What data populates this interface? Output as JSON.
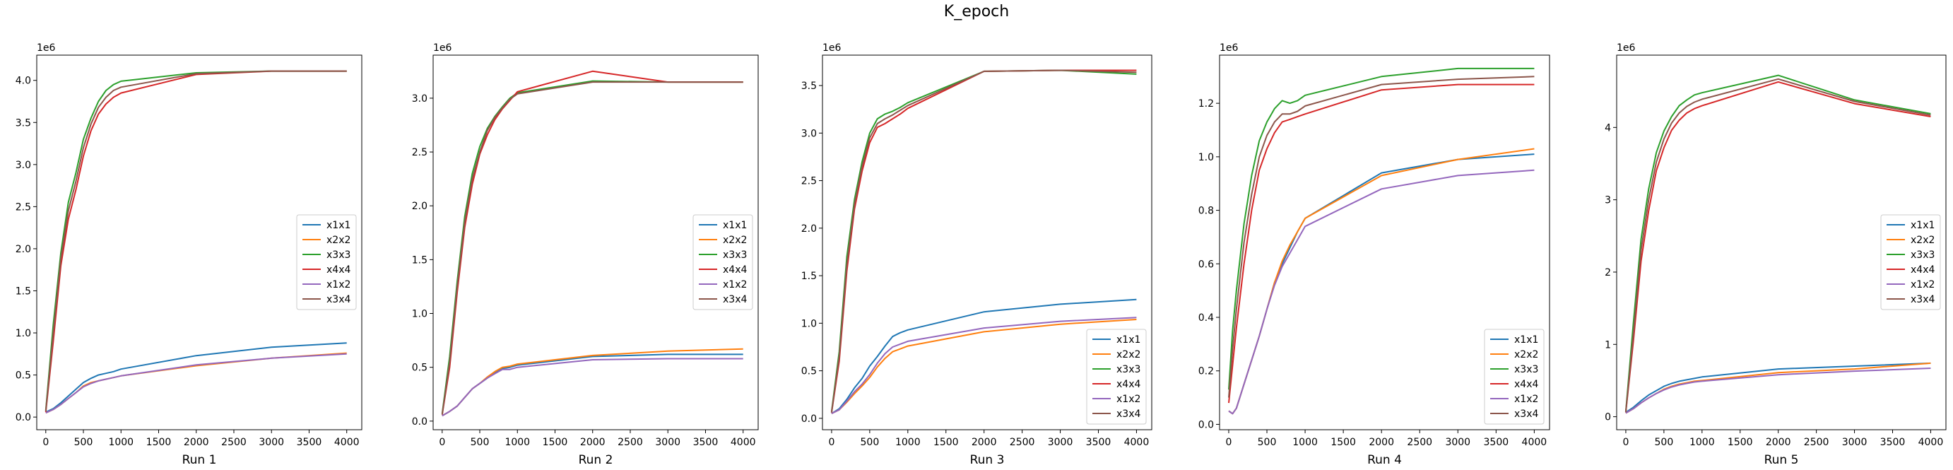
{
  "figure": {
    "title": "K_epoch"
  },
  "chart_data": [
    {
      "type": "line",
      "xlabel": "Run 1",
      "y_multiplier": "1e6",
      "xlim": [
        -120,
        4200
      ],
      "ylim": [
        -0.15,
        4.3
      ],
      "xticks": [
        0,
        500,
        1000,
        1500,
        2000,
        2500,
        3000,
        3500,
        4000
      ],
      "xtick_labels": [
        "0",
        "500",
        "1000",
        "1500",
        "2000",
        "2500",
        "3000",
        "3500",
        "4000"
      ],
      "yticks": [
        0.0,
        0.5,
        1.0,
        1.5,
        2.0,
        2.5,
        3.0,
        3.5,
        4.0
      ],
      "ytick_labels": [
        "0.0",
        "0.5",
        "1.0",
        "1.5",
        "2.0",
        "2.5",
        "3.0",
        "3.5",
        "4.0"
      ],
      "grid": false,
      "legend_position": "center-right",
      "x": [
        0,
        100,
        200,
        300,
        400,
        500,
        600,
        700,
        800,
        900,
        1000,
        2000,
        3000,
        4000
      ],
      "series": [
        {
          "name": "x1x1",
          "color": "#1f77b4",
          "values": [
            0.06,
            0.1,
            0.17,
            0.25,
            0.33,
            0.41,
            0.46,
            0.5,
            0.52,
            0.54,
            0.57,
            0.73,
            0.83,
            0.88
          ]
        },
        {
          "name": "x2x2",
          "color": "#ff7f0e",
          "values": [
            0.05,
            0.09,
            0.15,
            0.22,
            0.29,
            0.37,
            0.41,
            0.43,
            0.45,
            0.47,
            0.49,
            0.61,
            0.7,
            0.76
          ]
        },
        {
          "name": "x3x3",
          "color": "#2ca02c",
          "values": [
            0.08,
            1.1,
            1.95,
            2.55,
            2.9,
            3.3,
            3.55,
            3.75,
            3.88,
            3.95,
            3.99,
            4.09,
            4.11,
            4.11
          ]
        },
        {
          "name": "x4x4",
          "color": "#d62728",
          "values": [
            0.06,
            0.9,
            1.8,
            2.35,
            2.7,
            3.1,
            3.4,
            3.6,
            3.72,
            3.8,
            3.85,
            4.07,
            4.11,
            4.11
          ]
        },
        {
          "name": "x1x2",
          "color": "#9467bd",
          "values": [
            0.05,
            0.09,
            0.15,
            0.22,
            0.29,
            0.36,
            0.4,
            0.43,
            0.45,
            0.47,
            0.49,
            0.62,
            0.7,
            0.75
          ]
        },
        {
          "name": "x3x4",
          "color": "#8c564b",
          "values": [
            0.07,
            1.0,
            1.88,
            2.45,
            2.8,
            3.2,
            3.48,
            3.68,
            3.8,
            3.88,
            3.92,
            4.08,
            4.11,
            4.11
          ]
        }
      ]
    },
    {
      "type": "line",
      "xlabel": "Run 2",
      "y_multiplier": "1e6",
      "xlim": [
        -120,
        4200
      ],
      "ylim": [
        -0.08,
        3.4
      ],
      "xticks": [
        0,
        500,
        1000,
        1500,
        2000,
        2500,
        3000,
        3500,
        4000
      ],
      "xtick_labels": [
        "0",
        "500",
        "1000",
        "1500",
        "2000",
        "2500",
        "3000",
        "3500",
        "4000"
      ],
      "yticks": [
        0.0,
        0.5,
        1.0,
        1.5,
        2.0,
        2.5,
        3.0
      ],
      "ytick_labels": [
        "0.0",
        "0.5",
        "1.0",
        "1.5",
        "2.0",
        "2.5",
        "3.0"
      ],
      "grid": false,
      "legend_position": "center-right",
      "x": [
        0,
        100,
        200,
        300,
        400,
        500,
        600,
        700,
        800,
        900,
        1000,
        2000,
        3000,
        4000
      ],
      "series": [
        {
          "name": "x1x1",
          "color": "#1f77b4",
          "values": [
            0.05,
            0.09,
            0.14,
            0.22,
            0.3,
            0.35,
            0.4,
            0.45,
            0.49,
            0.5,
            0.52,
            0.6,
            0.62,
            0.62
          ]
        },
        {
          "name": "x2x2",
          "color": "#ff7f0e",
          "values": [
            0.05,
            0.09,
            0.14,
            0.22,
            0.3,
            0.35,
            0.41,
            0.46,
            0.5,
            0.51,
            0.53,
            0.61,
            0.65,
            0.67
          ]
        },
        {
          "name": "x3x3",
          "color": "#2ca02c",
          "values": [
            0.07,
            0.6,
            1.3,
            1.9,
            2.3,
            2.55,
            2.72,
            2.83,
            2.92,
            3.0,
            3.05,
            3.16,
            3.15,
            3.15
          ]
        },
        {
          "name": "x4x4",
          "color": "#d62728",
          "values": [
            0.06,
            0.5,
            1.2,
            1.8,
            2.2,
            2.48,
            2.66,
            2.8,
            2.9,
            2.98,
            3.06,
            3.25,
            3.15,
            3.15
          ]
        },
        {
          "name": "x1x2",
          "color": "#9467bd",
          "values": [
            0.05,
            0.09,
            0.14,
            0.22,
            0.3,
            0.35,
            0.4,
            0.44,
            0.48,
            0.48,
            0.5,
            0.57,
            0.58,
            0.58
          ]
        },
        {
          "name": "x3x4",
          "color": "#8c564b",
          "values": [
            0.06,
            0.55,
            1.25,
            1.85,
            2.25,
            2.5,
            2.7,
            2.82,
            2.91,
            2.99,
            3.04,
            3.15,
            3.15,
            3.15
          ]
        }
      ]
    },
    {
      "type": "line",
      "xlabel": "Run 3",
      "y_multiplier": "1e6",
      "xlim": [
        -120,
        4200
      ],
      "ylim": [
        -0.12,
        3.82
      ],
      "xticks": [
        0,
        500,
        1000,
        1500,
        2000,
        2500,
        3000,
        3500,
        4000
      ],
      "xtick_labels": [
        "0",
        "500",
        "1000",
        "1500",
        "2000",
        "2500",
        "3000",
        "3500",
        "4000"
      ],
      "yticks": [
        0.0,
        0.5,
        1.0,
        1.5,
        2.0,
        2.5,
        3.0,
        3.5
      ],
      "ytick_labels": [
        "0.0",
        "0.5",
        "1.0",
        "1.5",
        "2.0",
        "2.5",
        "3.0",
        "3.5"
      ],
      "grid": false,
      "legend_position": "bottom-right",
      "x": [
        0,
        100,
        200,
        300,
        400,
        500,
        600,
        700,
        800,
        900,
        1000,
        2000,
        3000,
        4000
      ],
      "series": [
        {
          "name": "x1x1",
          "color": "#1f77b4",
          "values": [
            0.05,
            0.1,
            0.2,
            0.32,
            0.42,
            0.55,
            0.65,
            0.76,
            0.86,
            0.9,
            0.93,
            1.12,
            1.2,
            1.25
          ]
        },
        {
          "name": "x2x2",
          "color": "#ff7f0e",
          "values": [
            0.05,
            0.09,
            0.17,
            0.26,
            0.34,
            0.43,
            0.54,
            0.63,
            0.7,
            0.73,
            0.76,
            0.91,
            0.99,
            1.04
          ]
        },
        {
          "name": "x3x3",
          "color": "#2ca02c",
          "values": [
            0.07,
            0.7,
            1.7,
            2.3,
            2.7,
            3.0,
            3.15,
            3.2,
            3.23,
            3.27,
            3.32,
            3.65,
            3.66,
            3.62
          ]
        },
        {
          "name": "x4x4",
          "color": "#d62728",
          "values": [
            0.06,
            0.6,
            1.55,
            2.2,
            2.6,
            2.9,
            3.06,
            3.1,
            3.15,
            3.2,
            3.26,
            3.65,
            3.66,
            3.66
          ]
        },
        {
          "name": "x1x2",
          "color": "#9467bd",
          "values": [
            0.05,
            0.09,
            0.18,
            0.28,
            0.36,
            0.46,
            0.58,
            0.68,
            0.75,
            0.78,
            0.81,
            0.95,
            1.02,
            1.06
          ]
        },
        {
          "name": "x3x4",
          "color": "#8c564b",
          "values": [
            0.06,
            0.65,
            1.62,
            2.25,
            2.65,
            2.95,
            3.1,
            3.15,
            3.19,
            3.24,
            3.29,
            3.65,
            3.66,
            3.64
          ]
        }
      ]
    },
    {
      "type": "line",
      "xlabel": "Run 4",
      "y_multiplier": "1e6",
      "xlim": [
        -120,
        4200
      ],
      "ylim": [
        -0.02,
        1.38
      ],
      "xticks": [
        0,
        500,
        1000,
        1500,
        2000,
        2500,
        3000,
        3500,
        4000
      ],
      "xtick_labels": [
        "0",
        "500",
        "1000",
        "1500",
        "2000",
        "2500",
        "3000",
        "3500",
        "4000"
      ],
      "yticks": [
        0.0,
        0.2,
        0.4,
        0.6,
        0.8,
        1.0,
        1.2
      ],
      "ytick_labels": [
        "0.0",
        "0.2",
        "0.4",
        "0.6",
        "0.8",
        "1.0",
        "1.2"
      ],
      "grid": false,
      "legend_position": "bottom-right",
      "x": [
        0,
        50,
        100,
        200,
        300,
        400,
        500,
        600,
        700,
        800,
        900,
        1000,
        2000,
        3000,
        4000
      ],
      "series": [
        {
          "name": "x1x1",
          "color": "#1f77b4",
          "values": [
            0.05,
            0.04,
            0.06,
            0.15,
            0.24,
            0.33,
            0.43,
            0.53,
            0.6,
            0.66,
            0.72,
            0.77,
            0.94,
            0.99,
            1.01
          ]
        },
        {
          "name": "x2x2",
          "color": "#ff7f0e",
          "values": [
            0.05,
            0.04,
            0.06,
            0.15,
            0.24,
            0.33,
            0.43,
            0.53,
            0.61,
            0.67,
            0.72,
            0.77,
            0.93,
            0.99,
            1.03
          ]
        },
        {
          "name": "x3x3",
          "color": "#2ca02c",
          "values": [
            0.13,
            0.35,
            0.5,
            0.75,
            0.93,
            1.06,
            1.13,
            1.18,
            1.21,
            1.2,
            1.21,
            1.23,
            1.3,
            1.33,
            1.33
          ]
        },
        {
          "name": "x4x4",
          "color": "#d62728",
          "values": [
            0.08,
            0.22,
            0.36,
            0.6,
            0.8,
            0.95,
            1.03,
            1.09,
            1.13,
            1.14,
            1.15,
            1.16,
            1.25,
            1.27,
            1.27
          ]
        },
        {
          "name": "x1x2",
          "color": "#9467bd",
          "values": [
            0.05,
            0.04,
            0.06,
            0.15,
            0.24,
            0.33,
            0.43,
            0.52,
            0.59,
            0.64,
            0.69,
            0.74,
            0.88,
            0.93,
            0.95
          ]
        },
        {
          "name": "x3x4",
          "color": "#8c564b",
          "values": [
            0.1,
            0.28,
            0.43,
            0.68,
            0.86,
            1.0,
            1.08,
            1.13,
            1.16,
            1.16,
            1.17,
            1.19,
            1.27,
            1.29,
            1.3
          ]
        }
      ]
    },
    {
      "type": "line",
      "xlabel": "Run 5",
      "y_multiplier": "1e6",
      "xlim": [
        -120,
        4200
      ],
      "ylim": [
        -0.18,
        5.0
      ],
      "xticks": [
        0,
        500,
        1000,
        1500,
        2000,
        2500,
        3000,
        3500,
        4000
      ],
      "xtick_labels": [
        "0",
        "500",
        "1000",
        "1500",
        "2000",
        "2500",
        "3000",
        "3500",
        "4000"
      ],
      "yticks": [
        0,
        1,
        2,
        3,
        4
      ],
      "ytick_labels": [
        "0",
        "1",
        "2",
        "3",
        "4"
      ],
      "grid": false,
      "legend_position": "center-right",
      "x": [
        0,
        100,
        200,
        300,
        400,
        500,
        600,
        700,
        800,
        900,
        1000,
        2000,
        3000,
        4000
      ],
      "series": [
        {
          "name": "x1x1",
          "color": "#1f77b4",
          "values": [
            0.06,
            0.13,
            0.22,
            0.3,
            0.36,
            0.42,
            0.46,
            0.49,
            0.51,
            0.53,
            0.55,
            0.66,
            0.7,
            0.74
          ]
        },
        {
          "name": "x2x2",
          "color": "#ff7f0e",
          "values": [
            0.05,
            0.11,
            0.19,
            0.26,
            0.32,
            0.38,
            0.42,
            0.45,
            0.47,
            0.49,
            0.5,
            0.61,
            0.66,
            0.74
          ]
        },
        {
          "name": "x3x3",
          "color": "#2ca02c",
          "values": [
            0.07,
            1.3,
            2.45,
            3.15,
            3.65,
            3.95,
            4.15,
            4.3,
            4.38,
            4.45,
            4.48,
            4.72,
            4.38,
            4.19
          ]
        },
        {
          "name": "x4x4",
          "color": "#d62728",
          "values": [
            0.06,
            1.05,
            2.15,
            2.85,
            3.4,
            3.72,
            3.96,
            4.1,
            4.2,
            4.26,
            4.3,
            4.63,
            4.33,
            4.15
          ]
        },
        {
          "name": "x1x2",
          "color": "#9467bd",
          "values": [
            0.05,
            0.11,
            0.19,
            0.26,
            0.32,
            0.37,
            0.41,
            0.44,
            0.46,
            0.48,
            0.49,
            0.58,
            0.63,
            0.67
          ]
        },
        {
          "name": "x3x4",
          "color": "#8c564b",
          "values": [
            0.06,
            1.15,
            2.3,
            3.0,
            3.52,
            3.84,
            4.06,
            4.2,
            4.29,
            4.35,
            4.39,
            4.67,
            4.36,
            4.17
          ]
        }
      ]
    }
  ]
}
